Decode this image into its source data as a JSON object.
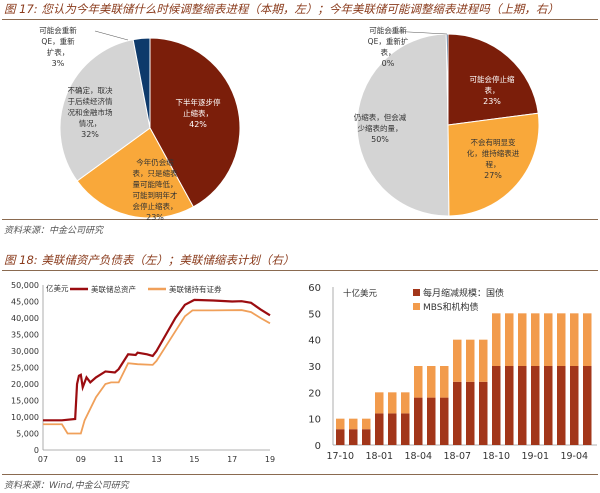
{
  "fig17": {
    "title": "图 17: 您认为今年美联储什么时候调整缩表进程（本期，左）；今年美联储可能调整缩表进程吗（上期，右）",
    "source": "资料来源：中金公司研究"
  },
  "fig18": {
    "title": "图 18: 美联储资产负债表（左）；美联储缩表计划（右）",
    "source": "资料来源：Wind,中金公司研究"
  },
  "colors": {
    "dark": "#7b1e0a",
    "orange": "#f9a83a",
    "gray": "#d4d4d4",
    "navy": "#0e3a6b",
    "bar_dark": "#a2361a",
    "bar_light": "#f29b4c",
    "line_total": "#9b0c10",
    "line_sec": "#f0a05a"
  },
  "chart_data": [
    {
      "type": "pie",
      "name": "left",
      "slices": [
        {
          "label": [
            "下半年逐步停",
            "止缩表，"
          ],
          "pct": "42%",
          "value": 42,
          "color": "dark"
        },
        {
          "label": [
            "今年仍会缩",
            "表，只是缩表",
            "量可能降低，",
            "可能到明年才",
            "会停止缩表，"
          ],
          "pct": "23%",
          "value": 23,
          "color": "orange"
        },
        {
          "label": [
            "不确定，取决",
            "于后续经济情",
            "况和金融市场",
            "情况，"
          ],
          "pct": "32%",
          "value": 32,
          "color": "gray"
        },
        {
          "label": [
            "可能会重新",
            "QE，重新",
            "扩表，"
          ],
          "pct": "3%",
          "value": 3,
          "color": "navy"
        }
      ]
    },
    {
      "type": "pie",
      "name": "right",
      "slices": [
        {
          "label": [
            "可能会停止缩",
            "表，"
          ],
          "pct": "23%",
          "value": 23,
          "color": "dark"
        },
        {
          "label": [
            "不会有明显变",
            "化，维持缩表进",
            "程，"
          ],
          "pct": "27%",
          "value": 27,
          "color": "orange"
        },
        {
          "label": [
            "仍缩表，但会减",
            "少缩表的量，"
          ],
          "pct": "50%",
          "value": 50,
          "color": "gray"
        },
        {
          "label": [
            "可能会重新",
            "QE，重新扩",
            "表，"
          ],
          "pct": "0%",
          "value": 0.3,
          "color": "navy"
        }
      ]
    },
    {
      "type": "line",
      "unit": "亿美元",
      "ylim": [
        0,
        50000
      ],
      "yticks": [
        "0",
        "5,000",
        "10,000",
        "15,000",
        "20,000",
        "25,000",
        "30,000",
        "35,000",
        "40,000",
        "45,000",
        "50,000"
      ],
      "xticks": [
        "07",
        "09",
        "11",
        "13",
        "15",
        "17",
        "19"
      ],
      "xlim": [
        2007,
        2019
      ],
      "series": [
        {
          "name": "美联储总资产",
          "color": "line_total",
          "points": [
            [
              2007,
              9000
            ],
            [
              2008,
              9000
            ],
            [
              2008.7,
              9400
            ],
            [
              2008.8,
              20000
            ],
            [
              2008.9,
              22500
            ],
            [
              2009,
              22800
            ],
            [
              2009.1,
              19000
            ],
            [
              2009.3,
              22000
            ],
            [
              2009.5,
              20500
            ],
            [
              2009.8,
              22000
            ],
            [
              2010.3,
              23800
            ],
            [
              2010.8,
              23500
            ],
            [
              2011,
              24500
            ],
            [
              2011.5,
              29000
            ],
            [
              2011.9,
              28800
            ],
            [
              2012,
              29500
            ],
            [
              2012.5,
              29000
            ],
            [
              2012.8,
              28500
            ],
            [
              2013,
              30000
            ],
            [
              2013.5,
              35000
            ],
            [
              2014,
              40000
            ],
            [
              2014.5,
              44000
            ],
            [
              2014.9,
              45200
            ],
            [
              2015,
              45500
            ],
            [
              2016,
              45300
            ],
            [
              2017,
              45000
            ],
            [
              2017.5,
              45100
            ],
            [
              2018,
              44600
            ],
            [
              2018.5,
              42600
            ],
            [
              2019,
              40800
            ]
          ]
        },
        {
          "name": "美联储持有证券",
          "color": "line_sec",
          "points": [
            [
              2007,
              7800
            ],
            [
              2008,
              7800
            ],
            [
              2008.3,
              5000
            ],
            [
              2009,
              5000
            ],
            [
              2009.2,
              9000
            ],
            [
              2009.8,
              16000
            ],
            [
              2010.3,
              20000
            ],
            [
              2010.6,
              20500
            ],
            [
              2011,
              20500
            ],
            [
              2011.5,
              26300
            ],
            [
              2012,
              26000
            ],
            [
              2012.8,
              25800
            ],
            [
              2013,
              27000
            ],
            [
              2013.5,
              31500
            ],
            [
              2014,
              36000
            ],
            [
              2014.5,
              40500
            ],
            [
              2014.9,
              42300
            ],
            [
              2016,
              42300
            ],
            [
              2017.5,
              42400
            ],
            [
              2018,
              41800
            ],
            [
              2018.5,
              40000
            ],
            [
              2019,
              38400
            ]
          ]
        }
      ]
    },
    {
      "type": "bar",
      "stacked": true,
      "unit": "十亿美元",
      "ylim": [
        0,
        60
      ],
      "yticks": [
        "0",
        "10",
        "20",
        "30",
        "40",
        "50",
        "60"
      ],
      "categories": [
        "17-10",
        "17-11",
        "17-12",
        "18-01",
        "18-02",
        "18-03",
        "18-04",
        "18-05",
        "18-06",
        "18-07",
        "18-08",
        "18-09",
        "18-10",
        "18-11",
        "18-12",
        "19-01",
        "19-02",
        "19-03",
        "19-04",
        "19-05"
      ],
      "xticks": [
        "17-10",
        "18-01",
        "18-04",
        "18-07",
        "18-10",
        "19-01",
        "19-04"
      ],
      "series": [
        {
          "name": "每月缩减规模：国债",
          "color": "bar_dark",
          "values": [
            6,
            6,
            6,
            12,
            12,
            12,
            18,
            18,
            18,
            24,
            24,
            24,
            30,
            30,
            30,
            30,
            30,
            30,
            30,
            30
          ]
        },
        {
          "name": "MBS和机构债",
          "color": "bar_light",
          "values": [
            4,
            4,
            4,
            8,
            8,
            8,
            12,
            12,
            12,
            16,
            16,
            16,
            20,
            20,
            20,
            20,
            20,
            20,
            20,
            20
          ]
        }
      ]
    }
  ]
}
